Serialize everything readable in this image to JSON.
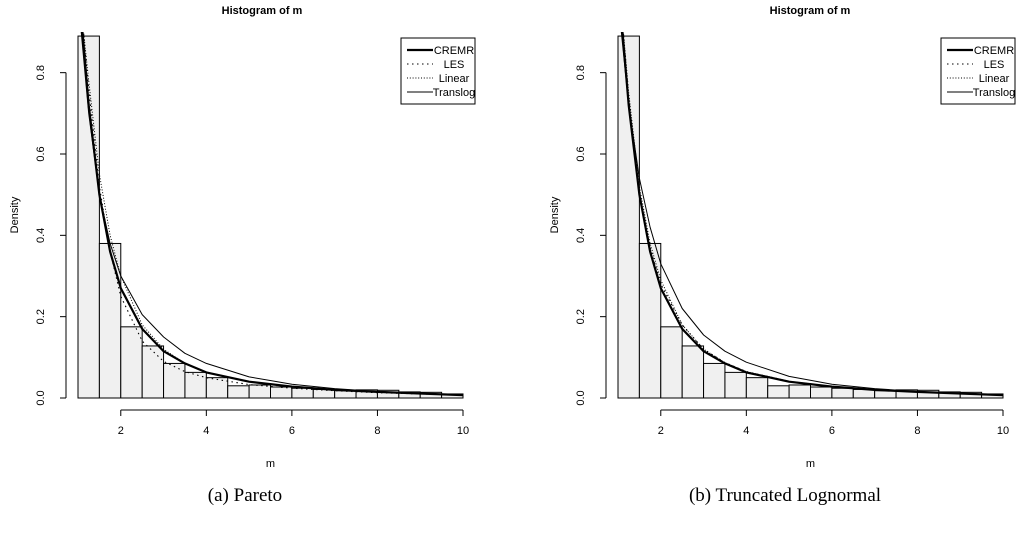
{
  "figure": {
    "captions": [
      "(a) Pareto",
      "(b) Truncated Lognormal"
    ]
  },
  "chart_data": [
    {
      "type": "bar",
      "title": "Histogram of m",
      "xlabel": "m",
      "ylabel": "Density",
      "xlim": [
        1,
        10
      ],
      "ylim": [
        0,
        0.9
      ],
      "xticks": [
        2,
        4,
        6,
        8,
        10
      ],
      "yticks": [
        0.0,
        0.2,
        0.4,
        0.6,
        0.8
      ],
      "grid": false,
      "legend_position": "top-right",
      "bins": {
        "breaks": [
          1.0,
          1.5,
          2.0,
          2.5,
          3.0,
          3.5,
          4.0,
          4.5,
          5.0,
          5.5,
          6.0,
          6.5,
          7.0,
          7.5,
          8.0,
          8.5,
          9.0,
          9.5,
          10.0
        ],
        "density": [
          0.89,
          0.38,
          0.175,
          0.128,
          0.085,
          0.063,
          0.05,
          0.03,
          0.032,
          0.027,
          0.024,
          0.021,
          0.018,
          0.02,
          0.019,
          0.015,
          0.014,
          0.01,
          0.012
        ]
      },
      "series": [
        {
          "name": "CREMR",
          "style": "solid-thick",
          "x": [
            1.08,
            1.25,
            1.5,
            1.75,
            2.0,
            2.5,
            3.0,
            3.5,
            4.0,
            5.0,
            6.0,
            7.0,
            8.0,
            9.0,
            10.0
          ],
          "y": [
            0.93,
            0.72,
            0.5,
            0.36,
            0.27,
            0.17,
            0.115,
            0.085,
            0.063,
            0.04,
            0.028,
            0.02,
            0.015,
            0.011,
            0.007
          ]
        },
        {
          "name": "LES",
          "style": "dotted",
          "x": [
            1.1,
            1.25,
            1.5,
            1.75,
            2.0,
            2.5,
            3.0,
            3.5,
            4.0,
            5.0,
            6.0,
            7.0,
            8.0,
            9.0,
            10.0
          ],
          "y": [
            0.93,
            0.76,
            0.52,
            0.36,
            0.25,
            0.14,
            0.09,
            0.065,
            0.05,
            0.033,
            0.024,
            0.018,
            0.013,
            0.01,
            0.007
          ]
        },
        {
          "name": "Linear",
          "style": "dotted-fine",
          "x": [
            1.1,
            1.25,
            1.5,
            1.75,
            2.0,
            2.5,
            3.0,
            3.5,
            4.0,
            5.0,
            6.0,
            7.0,
            8.0,
            9.0,
            10.0
          ],
          "y": [
            0.93,
            0.78,
            0.55,
            0.4,
            0.3,
            0.18,
            0.12,
            0.085,
            0.063,
            0.04,
            0.028,
            0.02,
            0.015,
            0.011,
            0.008
          ]
        },
        {
          "name": "Translog",
          "style": "solid-thin",
          "x": [
            1.05,
            1.25,
            1.5,
            1.75,
            2.0,
            2.5,
            3.0,
            3.5,
            4.0,
            5.0,
            6.0,
            7.0,
            8.0,
            9.0,
            10.0
          ],
          "y": [
            0.93,
            0.7,
            0.5,
            0.38,
            0.3,
            0.205,
            0.15,
            0.11,
            0.085,
            0.052,
            0.034,
            0.023,
            0.016,
            0.011,
            0.008
          ]
        }
      ]
    },
    {
      "type": "bar",
      "title": "Histogram of m",
      "xlabel": "m",
      "ylabel": "Density",
      "xlim": [
        1,
        10
      ],
      "ylim": [
        0,
        0.9
      ],
      "xticks": [
        2,
        4,
        6,
        8,
        10
      ],
      "yticks": [
        0.0,
        0.2,
        0.4,
        0.6,
        0.8
      ],
      "grid": false,
      "legend_position": "top-right",
      "bins": {
        "breaks": [
          1.0,
          1.5,
          2.0,
          2.5,
          3.0,
          3.5,
          4.0,
          4.5,
          5.0,
          5.5,
          6.0,
          6.5,
          7.0,
          7.5,
          8.0,
          8.5,
          9.0,
          9.5,
          10.0
        ],
        "density": [
          0.89,
          0.38,
          0.175,
          0.128,
          0.085,
          0.063,
          0.05,
          0.03,
          0.032,
          0.027,
          0.024,
          0.021,
          0.018,
          0.02,
          0.019,
          0.015,
          0.014,
          0.01,
          0.012
        ]
      },
      "series": [
        {
          "name": "CREMR",
          "style": "solid-thick",
          "x": [
            1.08,
            1.25,
            1.5,
            1.75,
            2.0,
            2.5,
            3.0,
            3.5,
            4.0,
            5.0,
            6.0,
            7.0,
            8.0,
            9.0,
            10.0
          ],
          "y": [
            0.93,
            0.72,
            0.5,
            0.36,
            0.27,
            0.17,
            0.115,
            0.085,
            0.063,
            0.04,
            0.028,
            0.02,
            0.015,
            0.011,
            0.007
          ]
        },
        {
          "name": "LES",
          "style": "dotted",
          "x": [
            1.1,
            1.25,
            1.5,
            1.75,
            2.0,
            2.5,
            3.0,
            3.5,
            4.0,
            5.0,
            6.0,
            7.0,
            8.0,
            9.0,
            10.0
          ],
          "y": [
            0.93,
            0.74,
            0.51,
            0.37,
            0.28,
            0.18,
            0.12,
            0.087,
            0.065,
            0.041,
            0.028,
            0.02,
            0.015,
            0.011,
            0.008
          ]
        },
        {
          "name": "Linear",
          "style": "dotted-fine",
          "x": [
            1.1,
            1.25,
            1.5,
            1.75,
            2.0,
            2.5,
            3.0,
            3.5,
            4.0,
            5.0,
            6.0,
            7.0,
            8.0,
            9.0,
            10.0
          ],
          "y": [
            0.93,
            0.75,
            0.52,
            0.38,
            0.29,
            0.18,
            0.12,
            0.087,
            0.065,
            0.041,
            0.028,
            0.02,
            0.015,
            0.011,
            0.008
          ]
        },
        {
          "name": "Translog",
          "style": "solid-thin",
          "x": [
            1.05,
            1.25,
            1.5,
            1.75,
            2.0,
            2.5,
            3.0,
            3.5,
            4.0,
            5.0,
            6.0,
            7.0,
            8.0,
            9.0,
            10.0
          ],
          "y": [
            0.93,
            0.72,
            0.54,
            0.42,
            0.33,
            0.22,
            0.155,
            0.115,
            0.088,
            0.053,
            0.034,
            0.023,
            0.016,
            0.011,
            0.008
          ]
        }
      ]
    }
  ]
}
